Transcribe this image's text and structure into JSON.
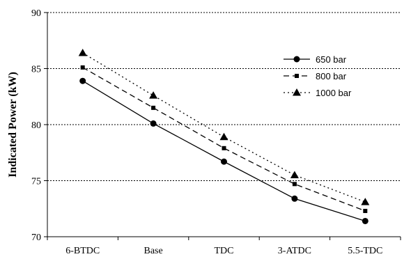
{
  "chart_data": {
    "type": "line",
    "title": "",
    "xlabel": "",
    "ylabel": "Indicated Power (kW)",
    "categories": [
      "6-BTDC",
      "Base",
      "TDC",
      "3-ATDC",
      "5.5-TDC"
    ],
    "ylim": [
      70,
      90
    ],
    "yticks": [
      70,
      75,
      80,
      85,
      90
    ],
    "grid": "horizontal dotted",
    "legend_position": "top-right",
    "series": [
      {
        "name": "650 bar",
        "values": [
          83.9,
          80.1,
          76.7,
          73.4,
          71.4
        ],
        "marker": "circle",
        "line_style": "solid"
      },
      {
        "name": "800 bar",
        "values": [
          85.1,
          81.5,
          77.9,
          74.7,
          72.3
        ],
        "marker": "square",
        "line_style": "dashed"
      },
      {
        "name": "1000 bar",
        "values": [
          86.4,
          82.6,
          78.9,
          75.5,
          73.1
        ],
        "marker": "triangle",
        "line_style": "dotted"
      }
    ]
  }
}
